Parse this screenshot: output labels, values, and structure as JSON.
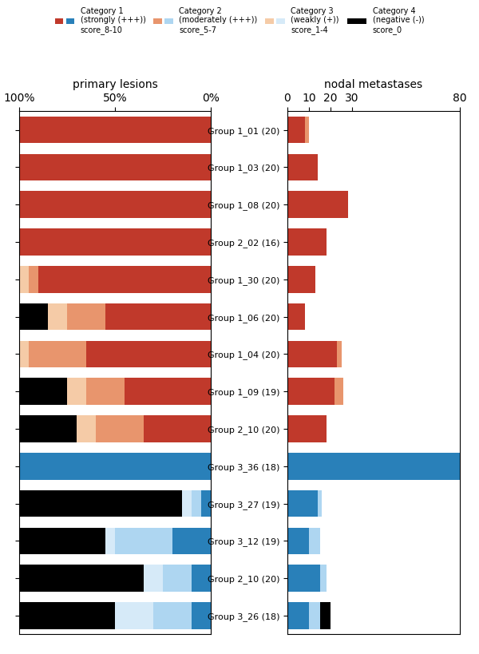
{
  "chart_data": [
    {
      "type": "bar",
      "orientation": "horizontal",
      "stacked": true,
      "xlabel": "primary lesions",
      "categories": [
        "Group 1_01 (20)",
        "Group 1_03 (20)",
        "Group 1_08 (20)",
        "Group 2_02 (16)",
        "Group 1_30 (20)",
        "Group 1_06 (20)",
        "Group 1_04 (20)",
        "Group 1_09 (19)",
        "Group 2_10 (20)",
        "Group 3_36 (18)",
        "Group 3_27 (19)",
        "Group 3_12 (19)",
        "Group 2_10 (20)",
        "Group 3_26 (18)"
      ],
      "series": [
        {
          "name": "Category 1\n(strongly (+++))\nscore_8-10",
          "values": [
            100,
            100,
            100,
            100,
            90,
            55,
            65,
            45,
            35,
            100,
            5,
            20,
            10,
            10
          ],
          "colors": [
            "#c0392b",
            "#c0392b",
            "#c0392b",
            "#c0392b",
            "#c0392b",
            "#c0392b",
            "#c0392b",
            "#c0392b",
            "#c0392b",
            "#2980b9",
            "#2980b9",
            "#2980b9",
            "#2980b9",
            "#2980b9"
          ]
        },
        {
          "name": "Category 2\n(moderately (+++))\nscore_5-7",
          "values": [
            0,
            0,
            0,
            0,
            5,
            20,
            30,
            20,
            25,
            0,
            5,
            30,
            15,
            20
          ],
          "colors": [
            "#e8956d",
            "#e8956d",
            "#e8956d",
            "#e8956d",
            "#e8956d",
            "#e8956d",
            "#e8956d",
            "#e8956d",
            "#e8956d",
            "#aed6f1",
            "#aed6f1",
            "#aed6f1",
            "#aed6f1",
            "#aed6f1"
          ]
        },
        {
          "name": "Category 3\n(weakly (+))\nscore_1-4",
          "values": [
            0,
            0,
            0,
            0,
            5,
            10,
            5,
            10,
            10,
            0,
            5,
            5,
            10,
            20
          ],
          "colors": [
            "#f5cba7",
            "#f5cba7",
            "#f5cba7",
            "#f5cba7",
            "#f5cba7",
            "#f5cba7",
            "#f5cba7",
            "#f5cba7",
            "#f5cba7",
            "#d6eaf8",
            "#d6eaf8",
            "#d6eaf8",
            "#d6eaf8",
            "#d6eaf8"
          ]
        },
        {
          "name": "Category 4\n(negative (-))\nscore_0",
          "values": [
            0,
            0,
            0,
            0,
            0,
            15,
            0,
            25,
            30,
            0,
            85,
            45,
            65,
            50
          ],
          "colors": [
            "#000000",
            "#000000",
            "#000000",
            "#000000",
            "#000000",
            "#000000",
            "#000000",
            "#000000",
            "#000000",
            "#000000",
            "#000000",
            "#000000",
            "#000000",
            "#000000"
          ]
        }
      ],
      "xlim": [
        100,
        0
      ],
      "xticks": [
        {
          "value": 0,
          "label": "0%"
        },
        {
          "value": 50,
          "label": "50%"
        },
        {
          "value": 100,
          "label": "100%"
        }
      ],
      "legend": "upper center"
    },
    {
      "type": "bar",
      "orientation": "horizontal",
      "stacked": true,
      "xlabel": "nodal metastases",
      "categories": [
        "Group 1_01 (20)",
        "Group 1_03 (20)",
        "Group 1_08 (20)",
        "Group 2_02 (16)",
        "Group 1_30 (20)",
        "Group 1_06 (20)",
        "Group 1_04 (20)",
        "Group 1_09 (19)",
        "Group 2_10 (20)",
        "Group 3_36 (18)",
        "Group 3_27 (19)",
        "Group 3_12 (19)",
        "Group 2_10 (20)",
        "Group 3_26 (18)"
      ],
      "series": [
        {
          "name": "Category 1\n(strongly (+++))\nscore_8-10",
          "values": [
            8,
            14,
            28,
            18,
            13,
            8,
            23,
            22,
            18,
            80,
            14,
            10,
            15,
            10
          ],
          "colors": [
            "#c0392b",
            "#c0392b",
            "#c0392b",
            "#c0392b",
            "#c0392b",
            "#c0392b",
            "#c0392b",
            "#c0392b",
            "#c0392b",
            "#2980b9",
            "#2980b9",
            "#2980b9",
            "#2980b9",
            "#2980b9"
          ]
        },
        {
          "name": "Category 2\n(moderately (+++))\nscore_5-7",
          "values": [
            2,
            0,
            0,
            0,
            0,
            0,
            2,
            4,
            0,
            0,
            2,
            5,
            3,
            5
          ],
          "colors": [
            "#e8956d",
            "#e8956d",
            "#e8956d",
            "#e8956d",
            "#e8956d",
            "#e8956d",
            "#e8956d",
            "#e8956d",
            "#e8956d",
            "#aed6f1",
            "#aed6f1",
            "#aed6f1",
            "#aed6f1",
            "#aed6f1"
          ]
        },
        {
          "name": "Category 4\n(negative (-))\nscore_0",
          "values": [
            0,
            0,
            0,
            0,
            0,
            0,
            0,
            0,
            0,
            0,
            0,
            0,
            0,
            5
          ],
          "colors": [
            "#000000",
            "#000000",
            "#000000",
            "#000000",
            "#000000",
            "#000000",
            "#000000",
            "#000000",
            "#000000",
            "#000000",
            "#000000",
            "#000000",
            "#000000",
            "#000000"
          ]
        }
      ],
      "xlim": [
        0,
        80
      ],
      "xticks": [
        0,
        10,
        20,
        30,
        80
      ]
    }
  ]
}
